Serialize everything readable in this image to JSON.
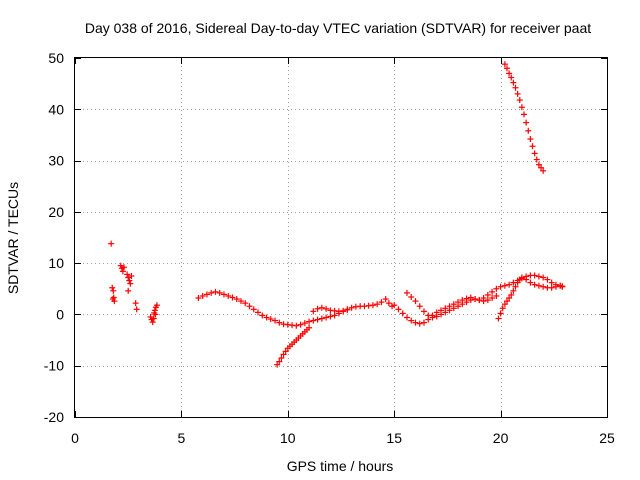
{
  "chart_data": {
    "type": "scatter",
    "title": "Day 038 of 2016, Sidereal Day-to-day VTEC variation (SDTVAR) for receiver paat",
    "xlabel": "GPS time / hours",
    "ylabel": "SDTVAR / TECUs",
    "xlim": [
      0,
      25
    ],
    "ylim": [
      -20,
      50
    ],
    "xticks": [
      0,
      5,
      10,
      15,
      20,
      25
    ],
    "yticks": [
      -20,
      -10,
      0,
      10,
      20,
      30,
      40,
      50
    ],
    "xtick_labels": [
      "0",
      "5",
      "10",
      "15",
      "20",
      "25"
    ],
    "ytick_labels": [
      "-20",
      "-10",
      "0",
      "10",
      "20",
      "30",
      "40",
      "50"
    ],
    "grid": true,
    "marker": "+",
    "color": "#ff0000",
    "series": [
      {
        "name": "SDTVAR",
        "points": [
          [
            1.7,
            13.8
          ],
          [
            1.75,
            5.2
          ],
          [
            1.8,
            4.6
          ],
          [
            1.82,
            3.3
          ],
          [
            1.85,
            2.6
          ],
          [
            1.78,
            3.0
          ],
          [
            2.15,
            9.5
          ],
          [
            2.2,
            9.0
          ],
          [
            2.25,
            8.4
          ],
          [
            2.3,
            9.2
          ],
          [
            2.45,
            7.8
          ],
          [
            2.5,
            7.2
          ],
          [
            2.55,
            6.6
          ],
          [
            2.6,
            6.0
          ],
          [
            2.65,
            7.5
          ],
          [
            2.5,
            4.6
          ],
          [
            2.85,
            2.2
          ],
          [
            2.9,
            1.0
          ],
          [
            3.55,
            -0.5
          ],
          [
            3.6,
            -1.0
          ],
          [
            3.65,
            -1.5
          ],
          [
            3.7,
            -0.8
          ],
          [
            3.72,
            0.3
          ],
          [
            3.75,
            0.8
          ],
          [
            3.8,
            1.4
          ],
          [
            3.85,
            1.8
          ],
          [
            3.78,
            0.0
          ],
          [
            5.8,
            3.2
          ],
          [
            6.0,
            3.6
          ],
          [
            6.2,
            3.9
          ],
          [
            6.4,
            4.2
          ],
          [
            6.6,
            4.4
          ],
          [
            6.8,
            4.2
          ],
          [
            7.0,
            3.9
          ],
          [
            7.2,
            3.6
          ],
          [
            7.4,
            3.3
          ],
          [
            7.6,
            3.0
          ],
          [
            7.8,
            2.6
          ],
          [
            8.0,
            2.2
          ],
          [
            8.2,
            1.6
          ],
          [
            8.4,
            1.0
          ],
          [
            8.6,
            0.4
          ],
          [
            8.8,
            -0.2
          ],
          [
            9.0,
            -0.6
          ],
          [
            9.2,
            -0.9
          ],
          [
            9.4,
            -1.2
          ],
          [
            9.6,
            -1.6
          ],
          [
            9.8,
            -1.9
          ],
          [
            10.0,
            -2.0
          ],
          [
            10.2,
            -2.1
          ],
          [
            10.4,
            -2.2
          ],
          [
            10.6,
            -2.0
          ],
          [
            10.8,
            -1.7
          ],
          [
            11.0,
            -1.4
          ],
          [
            11.2,
            -1.2
          ],
          [
            11.4,
            -1.0
          ],
          [
            11.6,
            -0.8
          ],
          [
            11.8,
            -0.6
          ],
          [
            12.0,
            -0.4
          ],
          [
            12.2,
            -0.2
          ],
          [
            12.4,
            0.2
          ],
          [
            12.6,
            0.6
          ],
          [
            12.8,
            1.0
          ],
          [
            13.0,
            1.3
          ],
          [
            13.2,
            1.5
          ],
          [
            13.4,
            1.6
          ],
          [
            13.6,
            1.6
          ],
          [
            13.8,
            1.7
          ],
          [
            14.0,
            1.8
          ],
          [
            14.2,
            2.0
          ],
          [
            14.4,
            2.4
          ],
          [
            14.6,
            3.0
          ],
          [
            14.75,
            2.2
          ],
          [
            14.9,
            1.6
          ],
          [
            9.5,
            -9.8
          ],
          [
            9.6,
            -9.2
          ],
          [
            9.7,
            -8.5
          ],
          [
            9.8,
            -7.8
          ],
          [
            9.9,
            -7.2
          ],
          [
            10.0,
            -6.6
          ],
          [
            10.1,
            -6.2
          ],
          [
            10.2,
            -5.8
          ],
          [
            10.3,
            -5.4
          ],
          [
            10.4,
            -5.0
          ],
          [
            10.5,
            -4.6
          ],
          [
            10.6,
            -4.2
          ],
          [
            10.7,
            -3.8
          ],
          [
            10.8,
            -3.4
          ],
          [
            10.9,
            -3.0
          ],
          [
            11.0,
            -2.6
          ],
          [
            11.2,
            0.6
          ],
          [
            11.4,
            1.1
          ],
          [
            11.6,
            1.3
          ],
          [
            11.8,
            1.1
          ],
          [
            12.0,
            0.8
          ],
          [
            12.2,
            0.7
          ],
          [
            12.4,
            0.6
          ],
          [
            12.6,
            0.7
          ],
          [
            12.8,
            0.9
          ],
          [
            15.0,
            1.8
          ],
          [
            15.2,
            1.0
          ],
          [
            15.4,
            0.2
          ],
          [
            15.6,
            -0.6
          ],
          [
            15.8,
            -1.2
          ],
          [
            16.0,
            -1.6
          ],
          [
            16.2,
            -1.8
          ],
          [
            16.4,
            -1.6
          ],
          [
            16.6,
            -1.0
          ],
          [
            16.8,
            -0.2
          ],
          [
            17.0,
            0.4
          ],
          [
            17.2,
            0.8
          ],
          [
            17.4,
            1.2
          ],
          [
            17.6,
            1.6
          ],
          [
            17.8,
            2.0
          ],
          [
            18.0,
            2.4
          ],
          [
            18.2,
            2.8
          ],
          [
            18.4,
            3.1
          ],
          [
            18.6,
            3.3
          ],
          [
            18.8,
            3.0
          ],
          [
            19.0,
            2.8
          ],
          [
            19.2,
            3.2
          ],
          [
            19.4,
            3.8
          ],
          [
            19.6,
            4.4
          ],
          [
            19.8,
            5.0
          ],
          [
            20.0,
            5.4
          ],
          [
            20.2,
            5.6
          ],
          [
            20.4,
            5.8
          ],
          [
            20.6,
            6.2
          ],
          [
            20.8,
            6.6
          ],
          [
            21.0,
            7.0
          ],
          [
            21.2,
            7.4
          ],
          [
            21.4,
            7.6
          ],
          [
            21.6,
            7.6
          ],
          [
            21.8,
            7.4
          ],
          [
            22.0,
            7.2
          ],
          [
            22.2,
            6.8
          ],
          [
            22.4,
            6.2
          ],
          [
            22.6,
            5.8
          ],
          [
            22.8,
            5.6
          ],
          [
            22.9,
            5.4
          ],
          [
            15.6,
            4.2
          ],
          [
            15.8,
            3.4
          ],
          [
            16.0,
            2.6
          ],
          [
            16.2,
            1.6
          ],
          [
            16.4,
            0.6
          ],
          [
            16.6,
            -0.2
          ],
          [
            16.8,
            -0.6
          ],
          [
            17.0,
            -0.4
          ],
          [
            17.2,
            0.0
          ],
          [
            17.4,
            0.4
          ],
          [
            17.6,
            0.8
          ],
          [
            17.8,
            1.2
          ],
          [
            18.0,
            1.6
          ],
          [
            18.2,
            2.0
          ],
          [
            18.4,
            2.4
          ],
          [
            18.6,
            2.8
          ],
          [
            18.8,
            3.0
          ],
          [
            19.0,
            2.8
          ],
          [
            19.2,
            2.6
          ],
          [
            19.4,
            2.8
          ],
          [
            19.6,
            3.2
          ],
          [
            19.8,
            3.6
          ],
          [
            19.9,
            -0.8
          ],
          [
            20.0,
            0.2
          ],
          [
            20.1,
            1.2
          ],
          [
            20.2,
            2.0
          ],
          [
            20.3,
            2.6
          ],
          [
            20.4,
            3.2
          ],
          [
            20.5,
            3.8
          ],
          [
            20.6,
            4.6
          ],
          [
            20.7,
            5.4
          ],
          [
            20.8,
            6.2
          ],
          [
            20.9,
            6.8
          ],
          [
            21.0,
            7.2
          ],
          [
            21.2,
            6.8
          ],
          [
            21.4,
            6.2
          ],
          [
            21.6,
            5.8
          ],
          [
            21.8,
            5.6
          ],
          [
            22.0,
            5.4
          ],
          [
            22.2,
            5.2
          ],
          [
            22.4,
            5.2
          ],
          [
            22.6,
            5.4
          ],
          [
            22.8,
            5.6
          ],
          [
            22.9,
            5.5
          ],
          [
            20.2,
            48.8
          ],
          [
            20.3,
            48.0
          ],
          [
            20.4,
            47.0
          ],
          [
            20.5,
            46.2
          ],
          [
            20.6,
            45.2
          ],
          [
            20.7,
            44.2
          ],
          [
            20.8,
            43.0
          ],
          [
            20.9,
            41.8
          ],
          [
            21.0,
            40.4
          ],
          [
            21.1,
            39.0
          ],
          [
            21.2,
            37.4
          ],
          [
            21.3,
            35.8
          ],
          [
            21.4,
            34.2
          ],
          [
            21.5,
            32.8
          ],
          [
            21.6,
            31.4
          ],
          [
            21.7,
            30.2
          ],
          [
            21.8,
            29.2
          ],
          [
            21.9,
            28.6
          ],
          [
            22.0,
            28.0
          ]
        ]
      }
    ]
  }
}
